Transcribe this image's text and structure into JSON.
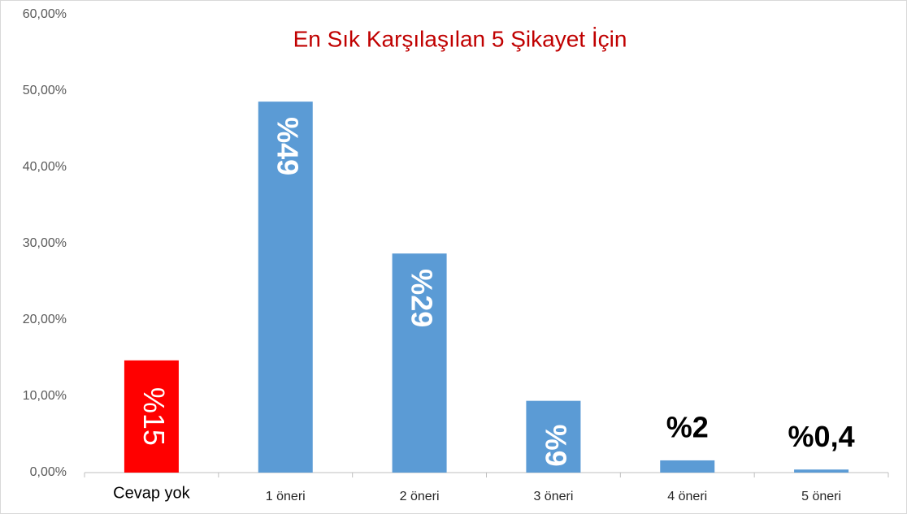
{
  "chart_data": {
    "type": "bar",
    "title": "En Sık Karşılaşılan 5 Şikayet İçin",
    "categories": [
      "Cevap yok",
      "1 öneri",
      "2 öneri",
      "3 öneri",
      "4 öneri",
      "5 öneri"
    ],
    "values": [
      14.7,
      48.6,
      28.7,
      9.4,
      1.6,
      0.4
    ],
    "value_labels": [
      "%15",
      "%49",
      "%29",
      "%9",
      "%2",
      "%0,4"
    ],
    "colors": [
      "#ff0000",
      "#5b9bd5",
      "#5b9bd5",
      "#5b9bd5",
      "#5b9bd5",
      "#5b9bd5"
    ],
    "ylim": [
      0,
      60
    ],
    "yticks": [
      {
        "value": 0,
        "label": "0,00%"
      },
      {
        "value": 10,
        "label": "10,00%"
      },
      {
        "value": 20,
        "label": "20,00%"
      },
      {
        "value": 30,
        "label": "30,00%"
      },
      {
        "value": 40,
        "label": "40,00%"
      },
      {
        "value": 50,
        "label": "50,00%"
      },
      {
        "value": 60,
        "label": "60,00%"
      }
    ],
    "grid": false
  }
}
